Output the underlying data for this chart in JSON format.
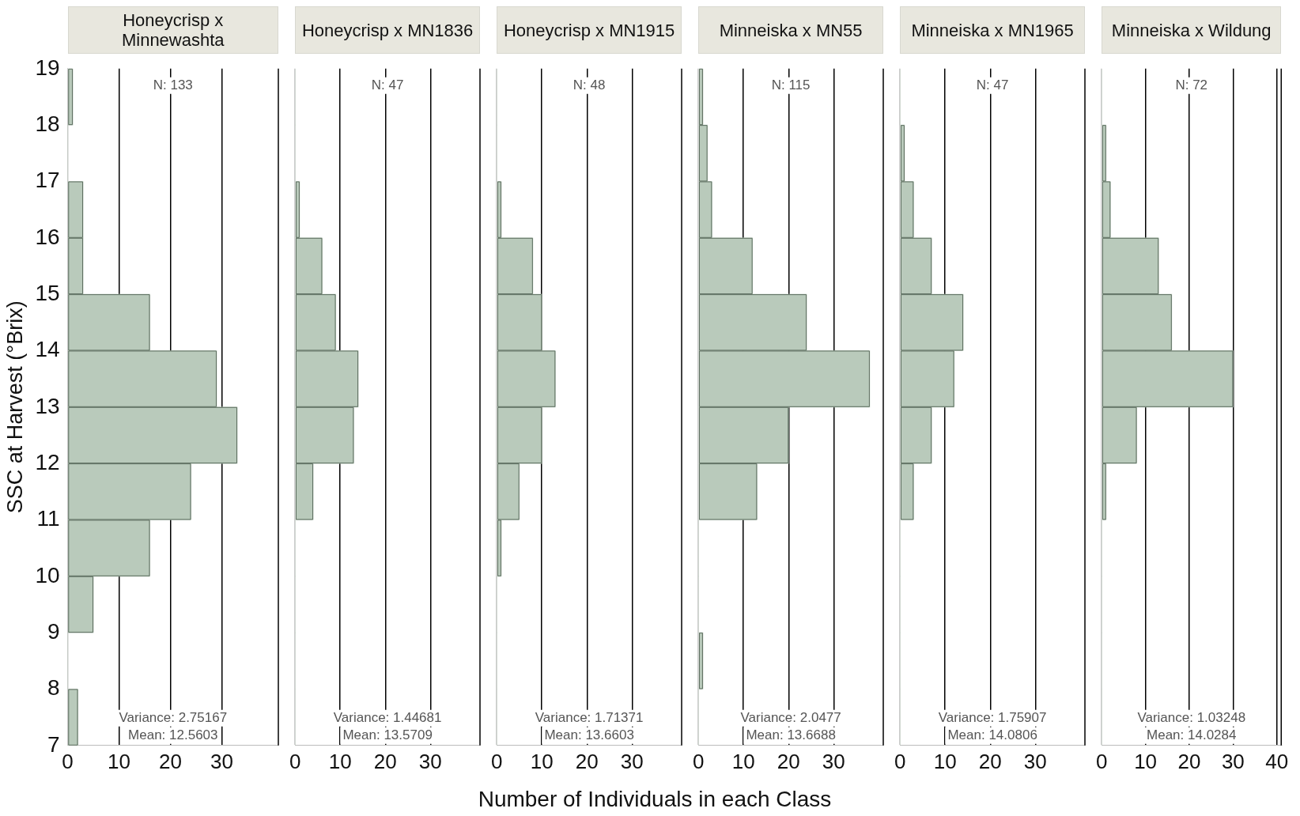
{
  "chart_data": [
    {
      "type": "histogram",
      "orientation": "horizontal",
      "title": "Honeycrisp x Minnewashta",
      "ylabel": "SSC at Harvest (°Brix)",
      "bins": [
        7,
        8,
        9,
        10,
        11,
        12,
        13,
        14,
        15,
        16,
        17,
        18,
        19
      ],
      "values": [
        2,
        0,
        5,
        16,
        24,
        33,
        29,
        16,
        3,
        3,
        0,
        1
      ],
      "color": "#b9cabb",
      "xlim": [
        0,
        41
      ],
      "xticks": [
        0,
        10,
        20,
        30
      ],
      "ylim": [
        7,
        19
      ],
      "yticks": [
        7,
        8,
        9,
        10,
        11,
        12,
        13,
        14,
        15,
        16,
        17,
        18,
        19
      ],
      "grid": "x",
      "annotations": [
        "N: 133",
        "Variance: 2.75167",
        "Mean: 12.5603"
      ]
    },
    {
      "type": "histogram",
      "orientation": "horizontal",
      "title": "Honeycrisp x MN1836",
      "bins": [
        7,
        8,
        9,
        10,
        11,
        12,
        13,
        14,
        15,
        16,
        17,
        18,
        19
      ],
      "values": [
        0,
        0,
        0,
        0,
        4,
        13,
        14,
        9,
        6,
        1,
        0,
        0
      ],
      "color": "#b9cabb",
      "xlim": [
        0,
        41
      ],
      "xticks": [
        0,
        10,
        20,
        30
      ],
      "ylim": [
        7,
        19
      ],
      "yticks": [
        7,
        8,
        9,
        10,
        11,
        12,
        13,
        14,
        15,
        16,
        17,
        18,
        19
      ],
      "tick_labels": "x",
      "grid": "x",
      "annotations": [
        "N: 47",
        "Variance: 1.44681",
        "Mean: 13.5709"
      ]
    },
    {
      "type": "histogram",
      "orientation": "horizontal",
      "title": "Honeycrisp x MN1915",
      "xlabel": "Number of Individuals in each Class",
      "bins": [
        7,
        8,
        9,
        10,
        11,
        12,
        13,
        14,
        15,
        16,
        17,
        18,
        19
      ],
      "values": [
        0,
        0,
        0,
        1,
        5,
        10,
        13,
        10,
        8,
        1,
        0,
        0
      ],
      "color": "#b9cabb",
      "xlim": [
        0,
        41
      ],
      "xticks": [
        0,
        10,
        20,
        30
      ],
      "ylim": [
        7,
        19
      ],
      "yticks": [
        7,
        8,
        9,
        10,
        11,
        12,
        13,
        14,
        15,
        16,
        17,
        18,
        19
      ],
      "tick_labels": "x",
      "grid": "x",
      "annotations": [
        "N: 48",
        "Variance: 1.71371",
        "Mean: 13.6603"
      ]
    },
    {
      "type": "histogram",
      "orientation": "horizontal",
      "title": "Minneiska x MN55",
      "bins": [
        7,
        8,
        9,
        10,
        11,
        12,
        13,
        14,
        15,
        16,
        17,
        18,
        19
      ],
      "values": [
        0,
        1,
        0,
        0,
        13,
        20,
        38,
        24,
        12,
        3,
        2,
        1
      ],
      "color": "#b9cabb",
      "xlim": [
        0,
        41
      ],
      "xticks": [
        0,
        10,
        20,
        30
      ],
      "ylim": [
        7,
        19
      ],
      "yticks": [
        7,
        8,
        9,
        10,
        11,
        12,
        13,
        14,
        15,
        16,
        17,
        18,
        19
      ],
      "tick_labels": "x",
      "grid": "x",
      "annotations": [
        "N: 115",
        "Variance: 2.0477",
        "Mean: 13.6688"
      ]
    },
    {
      "type": "histogram",
      "orientation": "horizontal",
      "title": "Minneiska x MN1965",
      "bins": [
        7,
        8,
        9,
        10,
        11,
        12,
        13,
        14,
        15,
        16,
        17,
        18,
        19
      ],
      "values": [
        0,
        0,
        0,
        0,
        3,
        7,
        12,
        14,
        7,
        3,
        1,
        0
      ],
      "color": "#b9cabb",
      "xlim": [
        0,
        41
      ],
      "xticks": [
        0,
        10,
        20,
        30
      ],
      "ylim": [
        7,
        19
      ],
      "yticks": [
        7,
        8,
        9,
        10,
        11,
        12,
        13,
        14,
        15,
        16,
        17,
        18,
        19
      ],
      "tick_labels": "x",
      "grid": "x",
      "annotations": [
        "N: 47",
        "Variance: 1.75907",
        "Mean: 14.0806"
      ]
    },
    {
      "type": "histogram",
      "orientation": "horizontal",
      "title": "Minneiska x Wildung",
      "bins": [
        7,
        8,
        9,
        10,
        11,
        12,
        13,
        14,
        15,
        16,
        17,
        18,
        19
      ],
      "values": [
        0,
        0,
        0,
        0,
        1,
        8,
        30,
        16,
        13,
        2,
        1,
        0
      ],
      "color": "#b9cabb",
      "xlim": [
        0,
        41
      ],
      "xticks": [
        0,
        10,
        20,
        30,
        40
      ],
      "ylim": [
        7,
        19
      ],
      "yticks": [
        7,
        8,
        9,
        10,
        11,
        12,
        13,
        14,
        15,
        16,
        17,
        18,
        19
      ],
      "tick_labels": "x",
      "grid": "x",
      "annotations": [
        "N: 72",
        "Variance: 1.03248",
        "Mean: 14.0284"
      ]
    }
  ]
}
